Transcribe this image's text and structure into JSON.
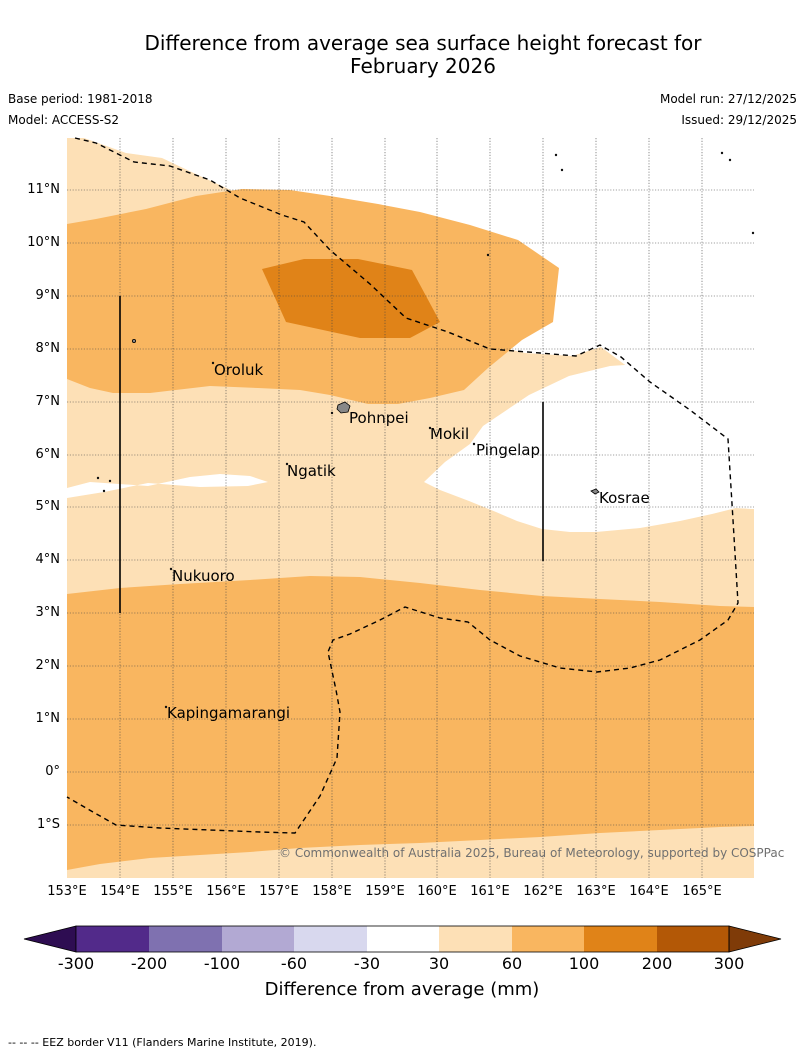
{
  "title_line1": "Difference from average sea surface height forecast for",
  "title_line2": "February 2026",
  "base_period": "Base period: 1981-2018",
  "model": "Model: ACCESS-S2",
  "model_run": "Model run: 27/12/2025",
  "issued": "Issued: 29/12/2025",
  "lat_labels": [
    "11°N",
    "10°N",
    "9°N",
    "8°N",
    "7°N",
    "6°N",
    "5°N",
    "4°N",
    "3°N",
    "2°N",
    "1°N",
    "0°",
    "1°S"
  ],
  "lon_labels": [
    "153°E",
    "154°E",
    "155°E",
    "156°E",
    "157°E",
    "158°E",
    "159°E",
    "160°E",
    "161°E",
    "162°E",
    "163°E",
    "164°E",
    "165°E"
  ],
  "places": {
    "oroluk": "Oroluk",
    "pohnpei": "Pohnpei",
    "mokil": "Mokil",
    "pingelap": "Pingelap",
    "ngatik": "Ngatik",
    "kosrae": "Kosrae",
    "nukuoro": "Nukuoro",
    "kapingamarangi": "Kapingamarangi"
  },
  "copyright": "© Commonwealth of Australia 2025, Bureau of Meteorology, supported by COSPPac",
  "colorbar": {
    "ticks": [
      "-300",
      "-200",
      "-100",
      "-60",
      "-30",
      "30",
      "60",
      "100",
      "200",
      "300"
    ],
    "colors": [
      "#522a8a",
      "#7f71b0",
      "#b2a9d3",
      "#d8d8ee",
      "#ffffff",
      "#fde0b6",
      "#f9b660",
      "#e08318",
      "#b35806"
    ],
    "under_color": "#2e0d52",
    "over_color": "#7f3b08",
    "label": "Difference from average (mm)"
  },
  "footer": "--  --  -- EEZ border V11 (Flanders Marine Institute, 2019)."
}
